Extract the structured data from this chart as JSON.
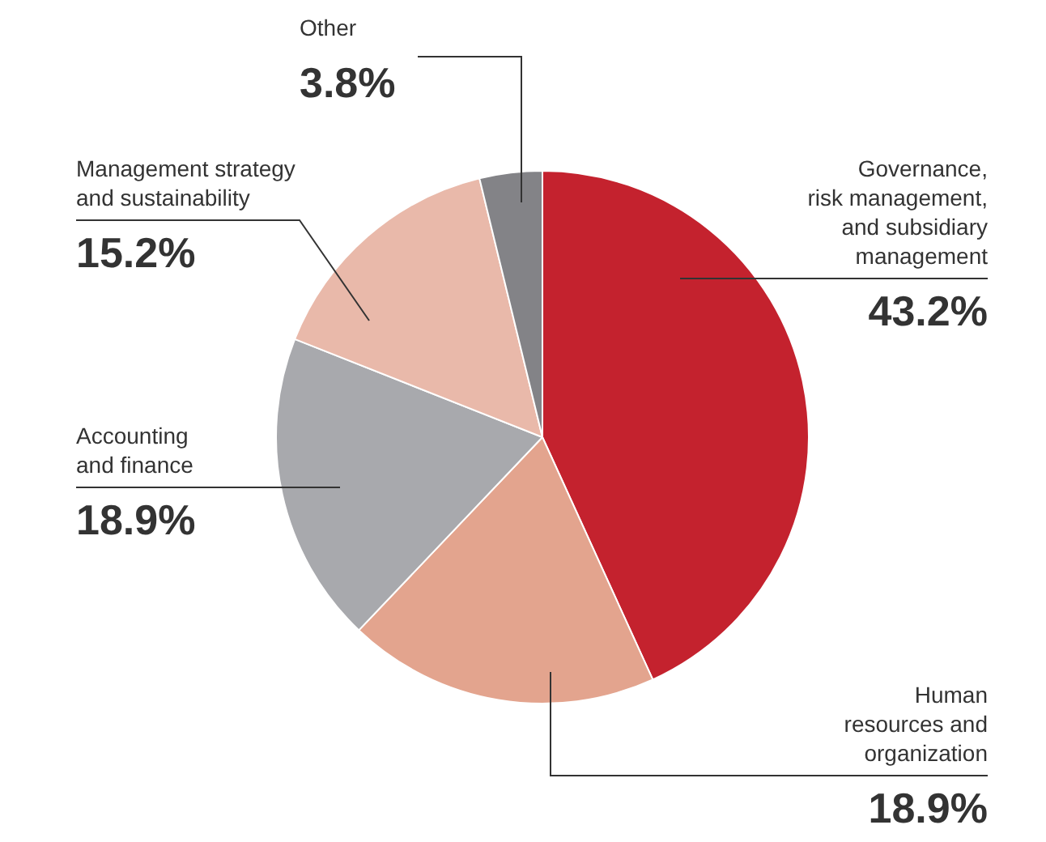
{
  "chart_data": {
    "type": "pie",
    "categories": [
      "Governance,\nrisk management,\nand subsidiary\nmanagement",
      "Human\nresources and\norganization",
      "Accounting\nand finance",
      "Management strategy\nand sustainability",
      "Other"
    ],
    "values": [
      43.2,
      18.9,
      18.9,
      15.2,
      3.8
    ],
    "value_labels": [
      "43.2%",
      "18.9%",
      "18.9%",
      "15.2%",
      "3.8%"
    ],
    "colors": [
      "#c4222e",
      "#e3a48e",
      "#a8a9ad",
      "#e9b9aa",
      "#838387"
    ],
    "legend": false
  }
}
